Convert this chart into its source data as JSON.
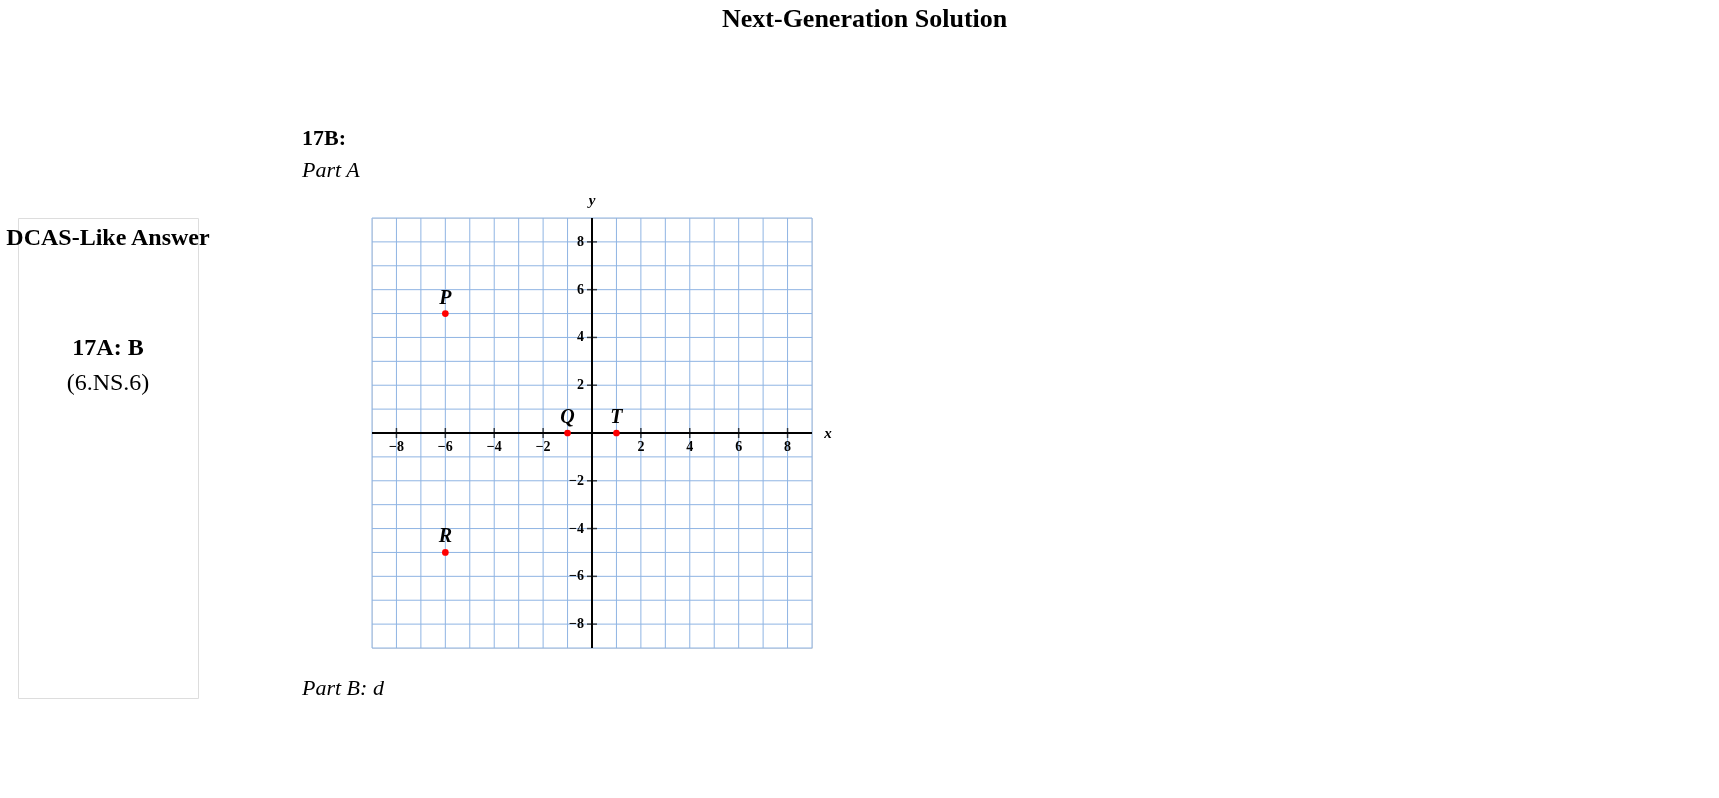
{
  "chart_data": {
    "type": "scatter",
    "title": "Next-Generation Solution",
    "xlabel": "x",
    "ylabel": "y",
    "x": [
      -6,
      -1,
      1,
      -6
    ],
    "values": [
      5,
      0,
      0,
      -5
    ],
    "color": "#ff0000",
    "marker": "circle",
    "grid": true,
    "legend": false,
    "xlim": [
      -9,
      9
    ],
    "ylim": [
      -9,
      9
    ],
    "xticks": [
      {
        "value": -9,
        "label": null
      },
      {
        "value": -8,
        "label": "−8"
      },
      {
        "value": -7,
        "label": null
      },
      {
        "value": -6,
        "label": "−6"
      },
      {
        "value": -5,
        "label": null
      },
      {
        "value": -4,
        "label": "−4"
      },
      {
        "value": -3,
        "label": null
      },
      {
        "value": -2,
        "label": "−2"
      },
      {
        "value": -1,
        "label": null
      },
      {
        "value": 0,
        "label": null
      },
      {
        "value": 1,
        "label": null
      },
      2,
      {
        "value": 3,
        "label": null
      },
      4,
      {
        "value": 5,
        "label": null
      },
      6,
      {
        "value": 7,
        "label": null
      },
      8,
      {
        "value": 9,
        "label": null
      }
    ],
    "yticks": [
      {
        "value": -9,
        "label": null
      },
      {
        "value": -8,
        "label": "−8"
      },
      {
        "value": -7,
        "label": null
      },
      {
        "value": -6,
        "label": "−6"
      },
      {
        "value": -5,
        "label": null
      },
      {
        "value": -4,
        "label": "−4"
      },
      {
        "value": -3,
        "label": null
      },
      {
        "value": -2,
        "label": "−2"
      },
      {
        "value": -1,
        "label": null
      },
      {
        "value": 0,
        "label": null
      },
      {
        "value": 1,
        "label": null
      },
      2,
      {
        "value": 3,
        "label": null
      },
      4,
      {
        "value": 5,
        "label": null
      },
      6,
      {
        "value": 7,
        "label": null
      },
      8,
      {
        "value": 9,
        "label": null
      }
    ],
    "annotations": [
      "DCAS-Like Answer",
      "17A: B",
      "(6.NS.6)",
      "17B:",
      "Part A",
      "Part B: d",
      {
        "text": "P",
        "x": -6,
        "y": 5
      },
      {
        "text": "Q",
        "x": -1,
        "y": 0
      },
      {
        "text": "T",
        "x": 1,
        "y": 0
      },
      {
        "text": "R",
        "x": -6,
        "y": -5
      }
    ]
  }
}
